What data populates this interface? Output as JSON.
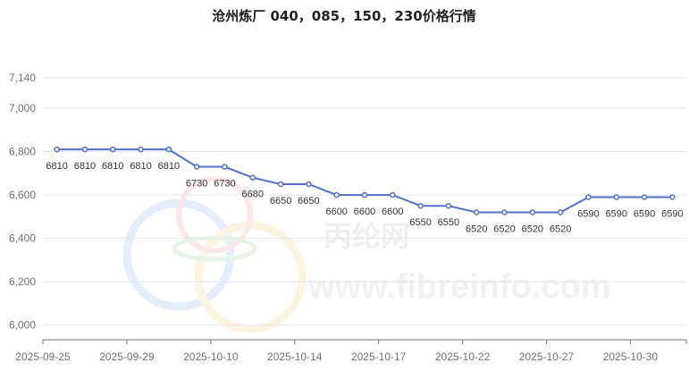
{
  "chart_data": {
    "type": "line",
    "title": "沧州炼厂 040，085，150，230价格行情",
    "xlabel": "",
    "ylabel": "",
    "x_tick_labels": [
      "2025-09-25",
      "2025-09-29",
      "2025-10-10",
      "2025-10-14",
      "2025-10-17",
      "2025-10-22",
      "2025-10-27",
      "2025-10-30"
    ],
    "y_ticks": [
      6000,
      6200,
      6400,
      6600,
      6800,
      7000,
      7140
    ],
    "y_tick_labels": [
      "6,000",
      "6,200",
      "6,400",
      "6,600",
      "6,800",
      "7,000",
      "7,140"
    ],
    "ylim": [
      5933,
      7140
    ],
    "grid": true,
    "series": [
      {
        "values": [
          6810,
          6810,
          6810,
          6810,
          6810,
          6730,
          6730,
          6680,
          6650,
          6650,
          6600,
          6600,
          6600,
          6550,
          6550,
          6520,
          6520,
          6520,
          6520,
          6590,
          6590,
          6590,
          6590
        ],
        "color": "#5470c6"
      }
    ],
    "watermark": "丙纶网 www.fibreinfo.com"
  }
}
